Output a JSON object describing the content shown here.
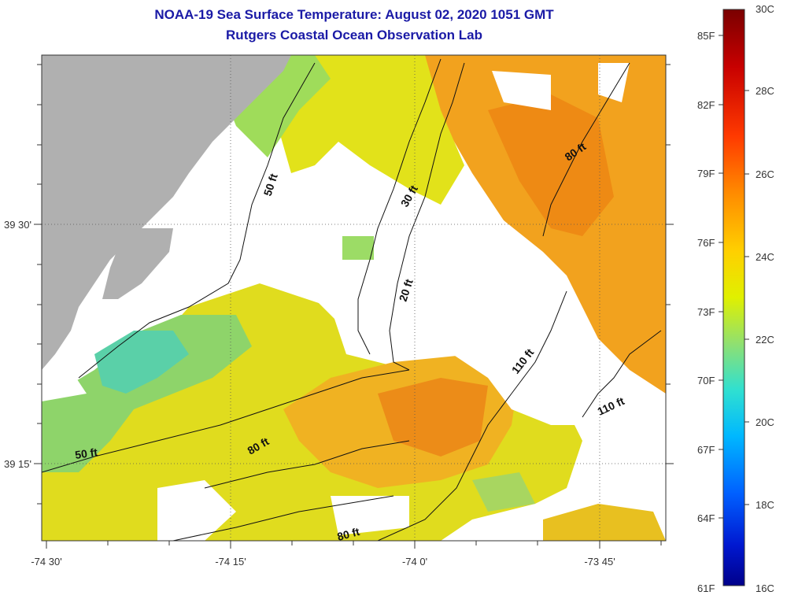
{
  "title": "NOAA-19 Sea Surface Temperature:  August 02, 2020 1051 GMT",
  "subtitle": "Rutgers Coastal Ocean Observation Lab",
  "x_ticks": [
    "-74 30'",
    "-74 15'",
    "-74 0'",
    "-73 45'"
  ],
  "y_ticks": [
    "39 30'",
    "39 15'"
  ],
  "depth_labels": [
    "50 ft",
    "30 ft",
    "80 ft",
    "20 ft",
    "110 ft",
    "110 ft",
    "80 ft",
    "50 ft",
    "80 ft"
  ],
  "colorbar": {
    "fahrenheit": [
      "85F",
      "82F",
      "79F",
      "76F",
      "73F",
      "70F",
      "67F",
      "64F",
      "61F"
    ],
    "celsius": [
      "30C",
      "28C",
      "26C",
      "24C",
      "22C",
      "20C",
      "18C",
      "16C"
    ],
    "colors": [
      "#7a0000",
      "#c80000",
      "#ff3a00",
      "#ff8c00",
      "#ffd000",
      "#e8f000",
      "#a8e070",
      "#40e0c0",
      "#00c8ff",
      "#0070ff",
      "#0018d0",
      "#00008a"
    ]
  },
  "land_color": "#b0b0b0"
}
